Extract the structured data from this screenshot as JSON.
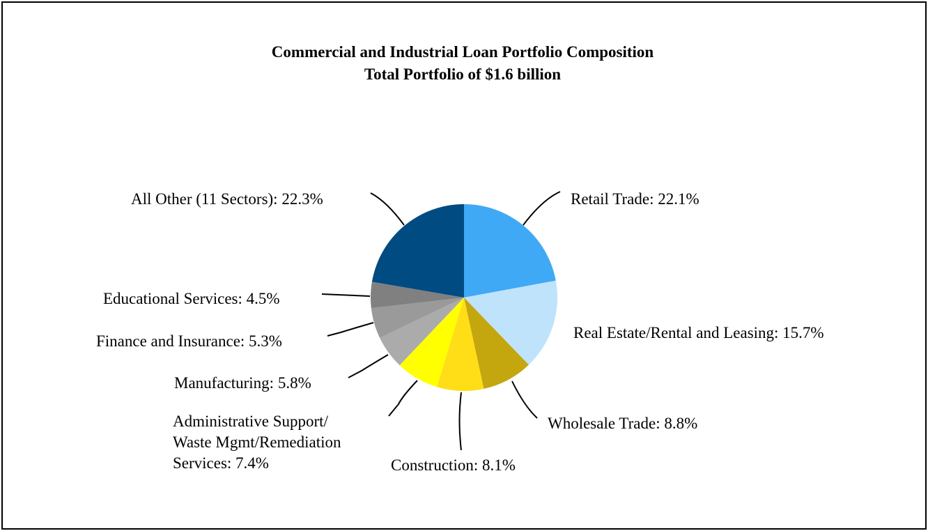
{
  "chart_data": {
    "type": "pie",
    "title": "Commercial and Industrial Loan Portfolio Composition",
    "subtitle": "Total Portfolio of $1.6 billion",
    "unit": "%",
    "slices": [
      {
        "label": "Retail Trade: 22.1%",
        "value": 22.1,
        "color": "#3fa9f5"
      },
      {
        "label": "Real Estate/Rental and Leasing: 15.7%",
        "value": 15.7,
        "color": "#bfe3fb"
      },
      {
        "label": "Wholesale Trade: 8.8%",
        "value": 8.8,
        "color": "#c4a60e"
      },
      {
        "label": "Construction: 8.1%",
        "value": 8.1,
        "color": "#ffde17"
      },
      {
        "label": "Administrative Support/ Waste Mgmt/Remediation Services: 7.4%",
        "label_lines": [
          "Administrative Support/",
          "Waste Mgmt/Remediation",
          "Services: 7.4%"
        ],
        "value": 7.4,
        "color": "#ffff00"
      },
      {
        "label": "Manufacturing: 5.8%",
        "value": 5.8,
        "color": "#ababab"
      },
      {
        "label": "Finance and Insurance: 5.3%",
        "value": 5.3,
        "color": "#9a9a9a"
      },
      {
        "label": "Educational Services: 4.5%",
        "value": 4.5,
        "color": "#808080"
      },
      {
        "label": "All Other (11 Sectors): 22.3%",
        "value": 22.3,
        "color": "#004b82"
      }
    ]
  }
}
